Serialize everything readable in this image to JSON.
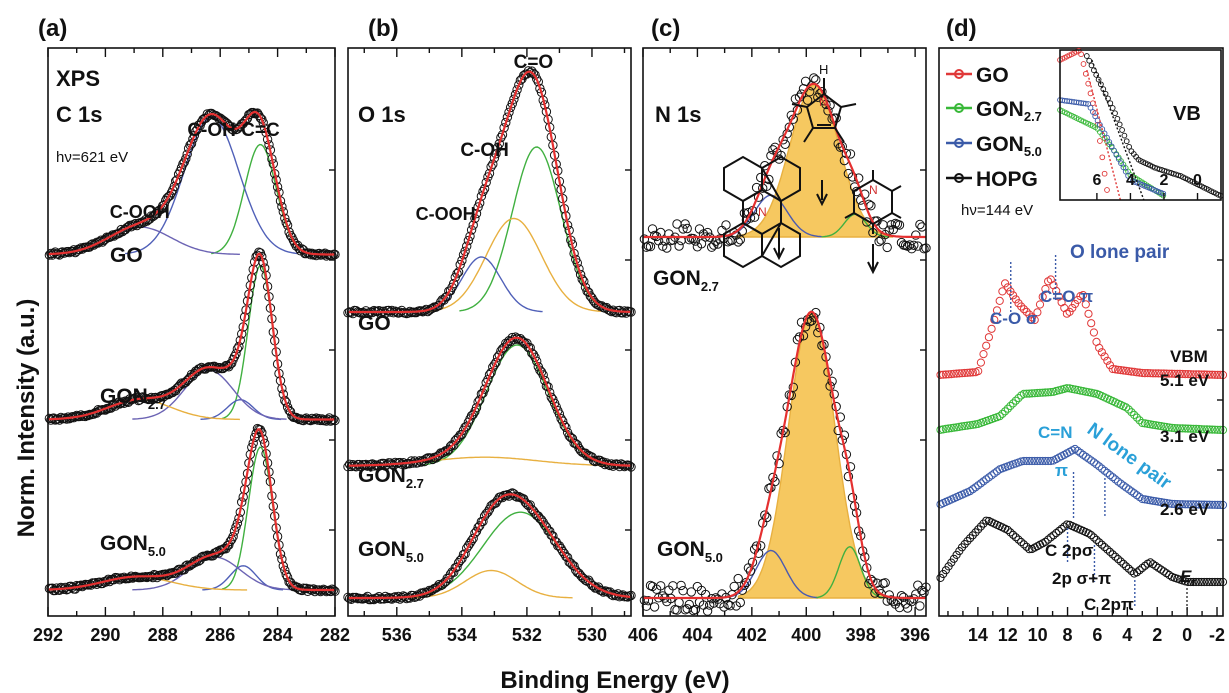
{
  "chart_data": [
    {
      "type": "line",
      "panel_label": "(a)",
      "title": "XPS",
      "subtitle": "C 1s",
      "photon_energy_label": "hν=621 eV",
      "xlim": [
        292,
        282
      ],
      "xticks": [
        "292",
        "290",
        "288",
        "286",
        "284",
        "282"
      ],
      "peak_labels": [
        {
          "text": "C-OOH",
          "x": 288.8
        },
        {
          "text": "C-OH",
          "x": 286.3
        },
        {
          "text": "C=C",
          "x": 284.6
        }
      ],
      "spectra": [
        {
          "name": "GO",
          "offset": 3.05,
          "peaks": [
            {
              "center": 284.6,
              "height": 1.0,
              "width": 0.55
            },
            {
              "center": 286.3,
              "height": 1.25,
              "width": 0.95
            },
            {
              "center": 288.8,
              "height": 0.25,
              "width": 1.1
            }
          ]
        },
        {
          "name": "GON",
          "sub": "2.7",
          "offset": 1.55,
          "peaks": [
            {
              "center": 284.6,
              "height": 1.4,
              "width": 0.42
            },
            {
              "center": 285.3,
              "height": 0.18,
              "width": 0.45
            },
            {
              "center": 286.4,
              "height": 0.45,
              "width": 0.85
            },
            {
              "center": 288.8,
              "height": 0.18,
              "width": 1.1
            }
          ]
        },
        {
          "name": "GON",
          "sub": "5.0",
          "offset": 0.0,
          "peaks": [
            {
              "center": 284.6,
              "height": 1.3,
              "width": 0.42
            },
            {
              "center": 285.2,
              "height": 0.22,
              "width": 0.45
            },
            {
              "center": 286.2,
              "height": 0.3,
              "width": 0.9
            },
            {
              "center": 288.9,
              "height": 0.12,
              "width": 1.2
            }
          ]
        }
      ]
    },
    {
      "type": "line",
      "panel_label": "(b)",
      "title": "O 1s",
      "xlim": [
        537.5,
        528.8
      ],
      "xticks": [
        "536",
        "534",
        "532",
        "530"
      ],
      "peak_labels": [
        {
          "text": "C=O",
          "x": 531.8
        },
        {
          "text": "C-OH",
          "x": 533.3
        },
        {
          "text": "C-OOH",
          "x": 534.5
        }
      ],
      "spectra": [
        {
          "name": "GO",
          "offset": 2.6,
          "peaks": [
            {
              "center": 531.7,
              "height": 1.5,
              "width": 0.75
            },
            {
              "center": 532.4,
              "height": 0.85,
              "width": 0.85
            },
            {
              "center": 533.4,
              "height": 0.5,
              "width": 0.6
            }
          ]
        },
        {
          "name": "GON",
          "sub": "2.7",
          "offset": 1.2,
          "peaks": [
            {
              "center": 532.3,
              "height": 1.1,
              "width": 0.95
            },
            {
              "center": 533.3,
              "height": 0.08,
              "width": 1.6
            }
          ]
        },
        {
          "name": "GON",
          "sub": "5.0",
          "offset": 0.0,
          "peaks": [
            {
              "center": 532.2,
              "height": 0.78,
              "width": 1.15
            },
            {
              "center": 533.1,
              "height": 0.25,
              "width": 0.8
            }
          ]
        }
      ]
    },
    {
      "type": "line",
      "panel_label": "(c)",
      "title": "N 1s",
      "xlim": [
        406,
        395.6
      ],
      "xticks": [
        "406",
        "404",
        "402",
        "400",
        "398",
        "396"
      ],
      "spectra": [
        {
          "name": "GON",
          "sub": "2.7",
          "offset": 1.9,
          "peaks": [
            {
              "center": 399.7,
              "height": 0.8,
              "width": 0.9
            },
            {
              "center": 401.3,
              "height": 0.22,
              "width": 0.6
            },
            {
              "center": 398.2,
              "height": 0.12,
              "width": 0.4
            }
          ]
        },
        {
          "name": "GON",
          "sub": "5.0",
          "offset": 0.0,
          "peaks": [
            {
              "center": 399.8,
              "height": 1.5,
              "width": 0.85
            },
            {
              "center": 401.3,
              "height": 0.25,
              "width": 0.55
            },
            {
              "center": 398.4,
              "height": 0.27,
              "width": 0.4
            }
          ]
        }
      ]
    },
    {
      "type": "line",
      "panel_label": "(d)",
      "title": "VB",
      "photon_energy_label": "hν=144 eV",
      "xlim": [
        16.6,
        -2.4
      ],
      "xticks": [
        "14",
        "12",
        "10",
        "8",
        "6",
        "4",
        "2",
        "0",
        "-2"
      ],
      "inset_xticks": [
        "6",
        "4",
        "2",
        "0"
      ],
      "legend_position": "top-left",
      "series": [
        {
          "name": "GO",
          "color": "#e03838",
          "vbm": "5.1 eV"
        },
        {
          "name": "GON",
          "sub": "2.7",
          "color": "#38b838",
          "vbm": "3.1 eV"
        },
        {
          "name": "GON",
          "sub": "5.0",
          "color": "#3a5aa8",
          "vbm": "2.6 eV"
        },
        {
          "name": "HOPG",
          "color": "#111111"
        }
      ],
      "vbm_title": "VBM",
      "annotations": {
        "o_lone_pair": "O lone pair",
        "co_sigma": "C-O σ",
        "co_pi": "C=O π",
        "cn": "C=N",
        "n_lone_pair": "N lone pair",
        "pi": "π",
        "c2p_sigma": "C 2pσ",
        "c2p_sigma_pi": "2p σ+π",
        "c2p_pi": "C 2pπ",
        "fermi": "E",
        "fermi_sub": "f"
      }
    }
  ],
  "y_axis_label": "Norm. Intensity (a.u.)",
  "x_axis_label": "Binding Energy (eV)",
  "colors": {
    "data": "#111111",
    "fit": "#e53030",
    "c_eq_c": "#40b040",
    "c_oh": "#5060b8",
    "c_ooh": "#6c64b4",
    "c_eq_o": "#e8b040",
    "fill": "#f6c860",
    "go": "#e03838",
    "gon27": "#38b838",
    "gon50": "#3a5aa8",
    "hopg": "#111111",
    "annotation_blue": "#3a5aa8",
    "annotation_cyan": "#2aa0d8"
  }
}
